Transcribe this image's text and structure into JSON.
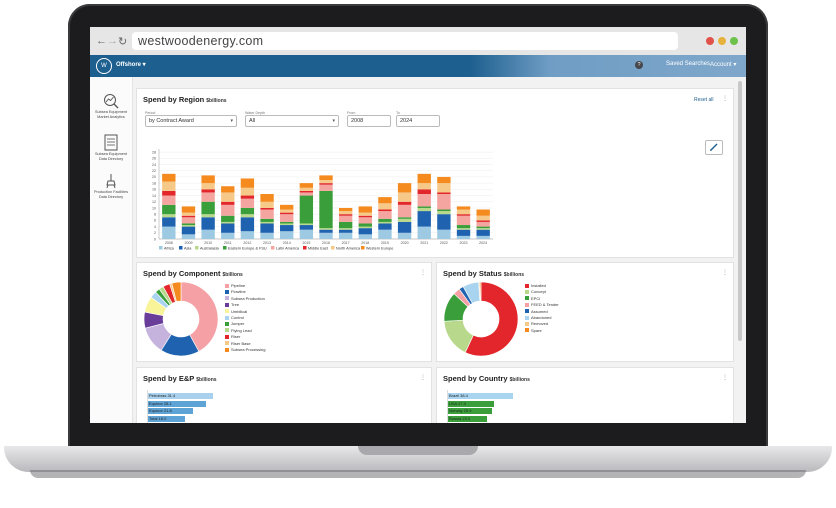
{
  "browser": {
    "url": "westwoodenergy.com"
  },
  "header": {
    "logo_text": "W",
    "module": "Offshore ▾",
    "help": "?",
    "saved_searches": "Saved Searches",
    "account": "Account ▾"
  },
  "sidebar": {
    "items": [
      {
        "label1": "Subsea Equipment",
        "label2": "Market Analytics"
      },
      {
        "label1": "Subsea Equipment",
        "label2": "Data Directory"
      },
      {
        "label1": "Production Facilities",
        "label2": "Data Directory"
      }
    ]
  },
  "region_panel": {
    "title": "Spend by Region",
    "unit": "$billions",
    "reset": "Reset all",
    "filters": {
      "period_label": "Period",
      "period_value": "by Contract Award",
      "depth_label": "Water Depth",
      "depth_value": "All",
      "from_label": "From",
      "from_value": "2008",
      "to_label": "To",
      "to_value": "2024"
    }
  },
  "component_panel": {
    "title": "Spend by Component",
    "unit": "$billions"
  },
  "status_panel": {
    "title": "Spend by Status",
    "unit": "$billions"
  },
  "ep_panel": {
    "title": "Spend by E&P",
    "unit": "$billions",
    "bars": [
      {
        "label": "Petrobras 31.4",
        "v": 31.4
      },
      {
        "label": "Equinor 28.1",
        "v": 28.1
      },
      {
        "label": "Equinor 21.8",
        "v": 21.8
      },
      {
        "label": "Total 18.0",
        "v": 18.0
      }
    ]
  },
  "country_panel": {
    "title": "Spend by Country",
    "unit": "$billions",
    "bars": [
      {
        "label": "Brazil 38.4",
        "v": 38.4
      },
      {
        "label": "USA 27.3",
        "v": 27.3
      },
      {
        "label": "Norway 25.9",
        "v": 25.9
      },
      {
        "label": "Russia 23.0",
        "v": 23.0
      }
    ]
  },
  "chart_data": [
    {
      "type": "bar",
      "stacked": true,
      "categories": [
        "2008",
        "2009",
        "2010",
        "2011",
        "2012",
        "2013",
        "2014",
        "2015",
        "2016",
        "2017",
        "2018",
        "2019",
        "2020",
        "2021",
        "2022",
        "2023",
        "2024"
      ],
      "yticks": [
        "0",
        "2",
        "4",
        "6",
        "8",
        "10",
        "12",
        "14",
        "16",
        "18",
        "20",
        "22",
        "24",
        "26",
        "28"
      ],
      "ylim": [
        0,
        29
      ],
      "legend_position": "bottom",
      "colors": {
        "Africa": "#9ec9e2",
        "Asia": "#1f63b0",
        "Australasia": "#b8d98c",
        "Eastern Europe & FSU": "#3a9f3a",
        "Latin America": "#f4a5a0",
        "Middle East": "#e2262b",
        "North America": "#f7c989",
        "Western Europe": "#f58a1f"
      },
      "series": [
        {
          "name": "Africa",
          "values": [
            4,
            1.5,
            3,
            2,
            2.5,
            2,
            2.5,
            3,
            2,
            2,
            1.5,
            3,
            2,
            4,
            3,
            1,
            1
          ]
        },
        {
          "name": "Asia",
          "values": [
            3,
            2.5,
            4,
            3,
            4.5,
            3,
            2,
            1.5,
            1,
            1,
            2,
            2,
            3.5,
            5,
            5,
            2,
            2
          ]
        },
        {
          "name": "Australasia",
          "values": [
            1,
            0.5,
            1,
            0.5,
            1,
            0.5,
            0.5,
            0.5,
            0.5,
            0.5,
            0.5,
            0.5,
            1,
            1,
            1,
            0.5,
            0.5
          ]
        },
        {
          "name": "Eastern Europe & FSU",
          "values": [
            3,
            0.5,
            4,
            2,
            2,
            1,
            0.5,
            9,
            12,
            2,
            1,
            1,
            0.5,
            0.5,
            0.5,
            1,
            0.5
          ]
        },
        {
          "name": "Latin America",
          "values": [
            3,
            2,
            3,
            3.5,
            3,
            3,
            2.5,
            1,
            2,
            2,
            2,
            2.5,
            4,
            4,
            5,
            3,
            1.5
          ]
        },
        {
          "name": "Middle East",
          "values": [
            1.5,
            0.5,
            1,
            1,
            1,
            0.5,
            0.5,
            0.5,
            0.5,
            0.5,
            0.5,
            0.5,
            1,
            1.5,
            0.5,
            0.5,
            0.5
          ]
        },
        {
          "name": "North America",
          "values": [
            3,
            1,
            2,
            3,
            2.5,
            2,
            1,
            1,
            1,
            1,
            1,
            2,
            3,
            2,
            3,
            1.5,
            1.5
          ]
        },
        {
          "name": "Western Europe",
          "values": [
            2.5,
            2,
            2.5,
            2,
            3,
            2.5,
            1.5,
            1.5,
            1.5,
            1,
            2,
            2,
            3,
            3,
            2,
            1,
            2
          ]
        }
      ]
    },
    {
      "type": "pie",
      "donut": true,
      "title": "Spend by Component",
      "labels": [
        "Pipeline",
        "Flowline",
        "Subsea Production",
        "Tree",
        "Umbilical",
        "Control",
        "Jumper",
        "Flying Lead",
        "Riser",
        "Riser Base",
        "Subsea Processing"
      ],
      "values": [
        42,
        17,
        12,
        7,
        7,
        3,
        2,
        2,
        3,
        1,
        4
      ],
      "colors": [
        "#f4a0a4",
        "#1f63b0",
        "#c6b3dd",
        "#6a3d9a",
        "#f9f39a",
        "#a9d4ef",
        "#3a9f3a",
        "#b8d98c",
        "#e2262b",
        "#f7c989",
        "#f58a1f"
      ]
    },
    {
      "type": "pie",
      "donut": true,
      "title": "Spend by Status",
      "labels": [
        "Installed",
        "Concept",
        "EPCI",
        "FEED & Tender",
        "Assumed",
        "Abandoned",
        "Removed",
        "Spare"
      ],
      "values": [
        57,
        17,
        13,
        3,
        2,
        7,
        0.5,
        0.5
      ],
      "colors": [
        "#e2262b",
        "#b8d98c",
        "#3a9f3a",
        "#f4a0a4",
        "#1f63b0",
        "#a9d4ef",
        "#f7c989",
        "#f58a1f"
      ]
    }
  ]
}
